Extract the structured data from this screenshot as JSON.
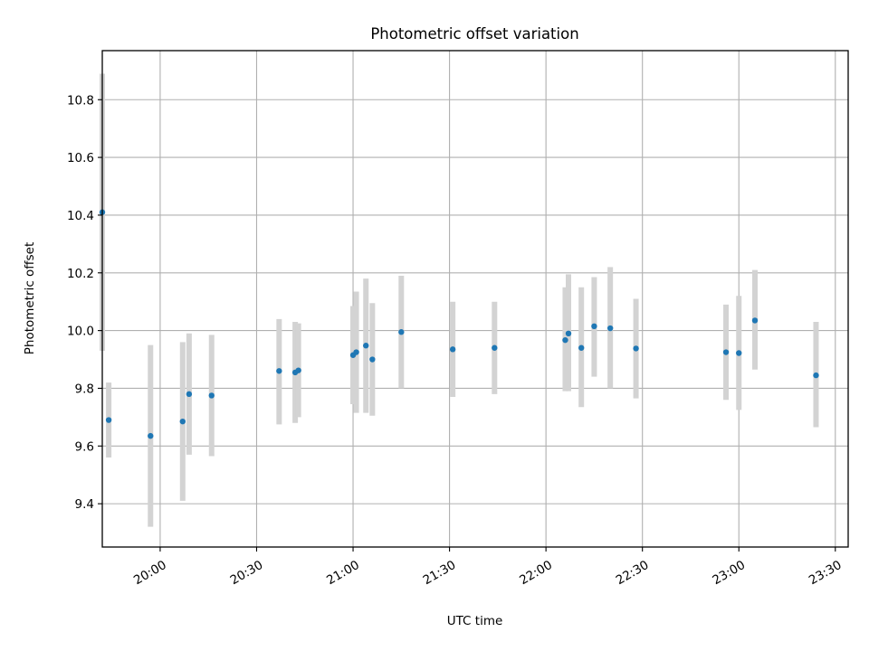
{
  "chart_data": {
    "type": "scatter",
    "title": "Photometric offset variation",
    "xlabel": "UTC time",
    "ylabel": "Photometric offset",
    "x_axis": {
      "type": "time",
      "range": [
        "19:42",
        "23:34"
      ],
      "ticks": [
        "20:00",
        "20:30",
        "21:00",
        "21:30",
        "22:00",
        "22:30",
        "23:00",
        "23:30"
      ]
    },
    "y_axis": {
      "range": [
        9.25,
        10.97
      ],
      "ticks": [
        "9.4",
        "9.6",
        "9.8",
        "10.0",
        "10.2",
        "10.4",
        "10.6",
        "10.8"
      ]
    },
    "grid": true,
    "colors": {
      "points": "#1f77b4",
      "errorbars": "#d3d3d3"
    },
    "points": [
      {
        "x": "19:42",
        "y": 10.41,
        "ylow": 9.93,
        "yhigh": 10.89
      },
      {
        "x": "19:44",
        "y": 9.69,
        "ylow": 9.56,
        "yhigh": 9.82
      },
      {
        "x": "19:57",
        "y": 9.635,
        "ylow": 9.32,
        "yhigh": 9.95
      },
      {
        "x": "20:07",
        "y": 9.685,
        "ylow": 9.41,
        "yhigh": 9.96
      },
      {
        "x": "20:09",
        "y": 9.78,
        "ylow": 9.57,
        "yhigh": 9.99
      },
      {
        "x": "20:16",
        "y": 9.775,
        "ylow": 9.565,
        "yhigh": 9.985
      },
      {
        "x": "20:37",
        "y": 9.86,
        "ylow": 9.675,
        "yhigh": 10.04
      },
      {
        "x": "20:42",
        "y": 9.855,
        "ylow": 9.68,
        "yhigh": 10.03
      },
      {
        "x": "20:43",
        "y": 9.862,
        "ylow": 9.7,
        "yhigh": 10.025
      },
      {
        "x": "21:00",
        "y": 9.915,
        "ylow": 9.745,
        "yhigh": 10.085
      },
      {
        "x": "21:01",
        "y": 9.925,
        "ylow": 9.715,
        "yhigh": 10.135
      },
      {
        "x": "21:04",
        "y": 9.948,
        "ylow": 9.715,
        "yhigh": 10.18
      },
      {
        "x": "21:06",
        "y": 9.9,
        "ylow": 9.705,
        "yhigh": 10.095
      },
      {
        "x": "21:15",
        "y": 9.995,
        "ylow": 9.8,
        "yhigh": 10.19
      },
      {
        "x": "21:31",
        "y": 9.935,
        "ylow": 9.77,
        "yhigh": 10.1
      },
      {
        "x": "21:44",
        "y": 9.94,
        "ylow": 9.78,
        "yhigh": 10.1
      },
      {
        "x": "22:06",
        "y": 9.967,
        "ylow": 9.79,
        "yhigh": 10.15
      },
      {
        "x": "22:07",
        "y": 9.99,
        "ylow": 9.79,
        "yhigh": 10.195
      },
      {
        "x": "22:11",
        "y": 9.94,
        "ylow": 9.735,
        "yhigh": 10.15
      },
      {
        "x": "22:15",
        "y": 10.015,
        "ylow": 9.84,
        "yhigh": 10.185
      },
      {
        "x": "22:20",
        "y": 10.008,
        "ylow": 9.8,
        "yhigh": 10.22
      },
      {
        "x": "22:28",
        "y": 9.938,
        "ylow": 9.765,
        "yhigh": 10.11
      },
      {
        "x": "22:56",
        "y": 9.925,
        "ylow": 9.76,
        "yhigh": 10.09
      },
      {
        "x": "23:00",
        "y": 9.922,
        "ylow": 9.725,
        "yhigh": 10.12
      },
      {
        "x": "23:05",
        "y": 10.035,
        "ylow": 9.865,
        "yhigh": 10.21
      },
      {
        "x": "23:24",
        "y": 9.845,
        "ylow": 9.665,
        "yhigh": 10.03
      }
    ]
  }
}
